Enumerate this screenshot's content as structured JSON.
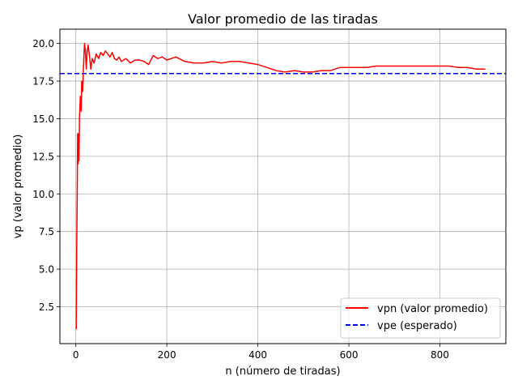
{
  "chart_data": {
    "type": "line",
    "title": "Valor promedio de las tiradas",
    "xlabel": "n (número de tiradas)",
    "ylabel": "vp (valor promedio)",
    "xlim": [
      -35,
      945
    ],
    "ylim": [
      0.05,
      20.95
    ],
    "xticks": [
      0,
      200,
      400,
      600,
      800
    ],
    "xtick_labels": [
      "0",
      "200",
      "400",
      "600",
      "800"
    ],
    "yticks": [
      2.5,
      5.0,
      7.5,
      10.0,
      12.5,
      15.0,
      17.5,
      20.0
    ],
    "ytick_labels": [
      "2.5",
      "5.0",
      "7.5",
      "10.0",
      "12.5",
      "15.0",
      "17.5",
      "20.0"
    ],
    "grid": true,
    "legend_position": "lower right",
    "series": [
      {
        "name": "vpn (valor promedio)",
        "color": "#ff0000",
        "linestyle": "solid",
        "x": [
          1,
          2,
          3,
          4,
          5,
          6,
          7,
          8,
          10,
          12,
          13,
          15,
          17,
          19,
          21,
          23,
          25,
          27,
          30,
          33,
          36,
          40,
          45,
          50,
          55,
          60,
          65,
          70,
          75,
          80,
          85,
          90,
          95,
          100,
          110,
          120,
          130,
          140,
          150,
          160,
          170,
          180,
          190,
          200,
          210,
          220,
          240,
          260,
          280,
          300,
          320,
          340,
          360,
          380,
          400,
          420,
          440,
          460,
          480,
          500,
          520,
          540,
          560,
          580,
          600,
          620,
          640,
          660,
          680,
          700,
          720,
          740,
          760,
          780,
          800,
          820,
          840,
          860,
          880,
          900
        ],
        "y": [
          1.0,
          6.5,
          10.0,
          14.0,
          12.0,
          14.0,
          12.2,
          15.0,
          16.5,
          15.5,
          17.5,
          16.8,
          18.5,
          20.0,
          19.5,
          18.3,
          19.5,
          19.9,
          19.2,
          18.3,
          19.0,
          18.7,
          19.3,
          19.0,
          19.4,
          19.2,
          19.5,
          19.3,
          19.1,
          19.4,
          19.0,
          18.9,
          19.1,
          18.8,
          19.0,
          18.7,
          18.9,
          18.9,
          18.8,
          18.6,
          19.2,
          19.0,
          19.1,
          18.9,
          19.0,
          19.1,
          18.8,
          18.7,
          18.7,
          18.8,
          18.7,
          18.8,
          18.8,
          18.7,
          18.6,
          18.4,
          18.2,
          18.1,
          18.2,
          18.1,
          18.1,
          18.2,
          18.2,
          18.4,
          18.4,
          18.4,
          18.4,
          18.5,
          18.5,
          18.5,
          18.5,
          18.5,
          18.5,
          18.5,
          18.5,
          18.5,
          18.4,
          18.4,
          18.3,
          18.3
        ]
      },
      {
        "name": "vpe (esperado)",
        "color": "#0000ff",
        "linestyle": "dashed",
        "y_constant": 18.0
      }
    ]
  }
}
